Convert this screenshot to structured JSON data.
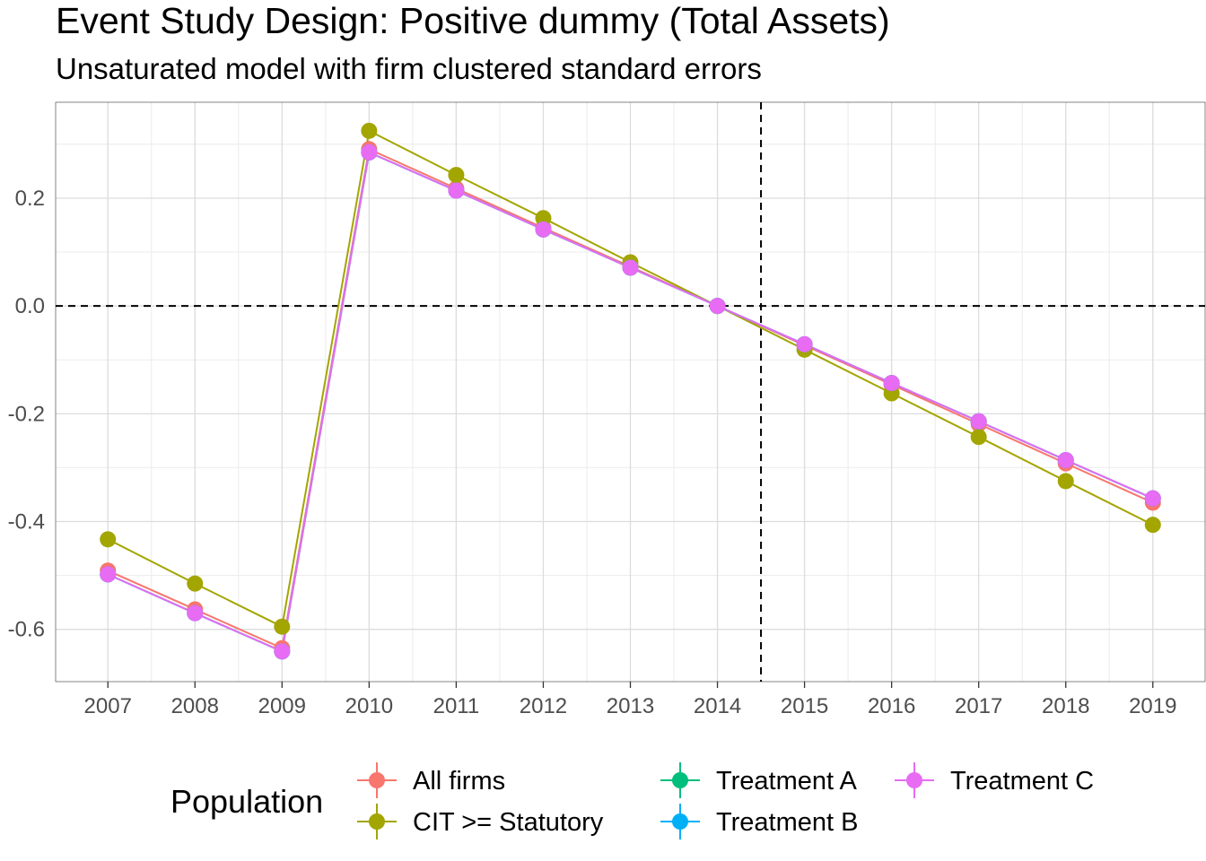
{
  "chart_data": {
    "type": "line",
    "title": "Event Study Design: Positive dummy (Total Assets)",
    "subtitle": "Unsaturated model with firm clustered standard errors",
    "xlabel": "",
    "ylabel": "",
    "x": [
      2007,
      2008,
      2009,
      2010,
      2011,
      2012,
      2013,
      2014,
      2015,
      2016,
      2017,
      2018,
      2019
    ],
    "x_tick_labels": [
      "2007",
      "2008",
      "2009",
      "2010",
      "2011",
      "2012",
      "2013",
      "2014",
      "2015",
      "2016",
      "2017",
      "2018",
      "2019"
    ],
    "y_tick_values": [
      -0.6,
      -0.4,
      -0.2,
      0.0,
      0.2
    ],
    "y_tick_labels": [
      "-0.6",
      "-0.4",
      "-0.2",
      "0.0",
      "0.2"
    ],
    "xlim": [
      2006.4,
      2019.6
    ],
    "ylim": [
      -0.697,
      0.378
    ],
    "reference_lines": {
      "horizontal_y": 0.0,
      "vertical_x": 2014.5,
      "style": "dashed"
    },
    "grid": true,
    "legend": {
      "title": "Population",
      "position": "bottom"
    },
    "series": [
      {
        "name": "All firms",
        "color": "#F8766D",
        "values": [
          -0.491,
          -0.563,
          -0.635,
          0.291,
          0.218,
          0.145,
          0.073,
          0.0,
          -0.073,
          -0.146,
          -0.219,
          -0.292,
          -0.365
        ]
      },
      {
        "name": "CIT >= Statutory",
        "color": "#A3A500",
        "values": [
          -0.433,
          -0.515,
          -0.595,
          0.325,
          0.243,
          0.163,
          0.081,
          0.0,
          -0.081,
          -0.162,
          -0.243,
          -0.325,
          -0.406
        ]
      },
      {
        "name": "Treatment A",
        "color": "#00BF7D",
        "values": [
          -0.498,
          -0.57,
          -0.641,
          0.285,
          0.214,
          0.142,
          0.071,
          0.0,
          -0.071,
          -0.143,
          -0.214,
          -0.286,
          -0.357
        ]
      },
      {
        "name": "Treatment B",
        "color": "#00B0F6",
        "values": [
          -0.498,
          -0.57,
          -0.641,
          0.285,
          0.214,
          0.142,
          0.071,
          0.0,
          -0.071,
          -0.143,
          -0.214,
          -0.286,
          -0.357
        ]
      },
      {
        "name": "Treatment C",
        "color": "#E76BF3",
        "values": [
          -0.498,
          -0.57,
          -0.641,
          0.285,
          0.214,
          0.142,
          0.071,
          0.0,
          -0.071,
          -0.143,
          -0.214,
          -0.286,
          -0.357
        ]
      }
    ]
  }
}
